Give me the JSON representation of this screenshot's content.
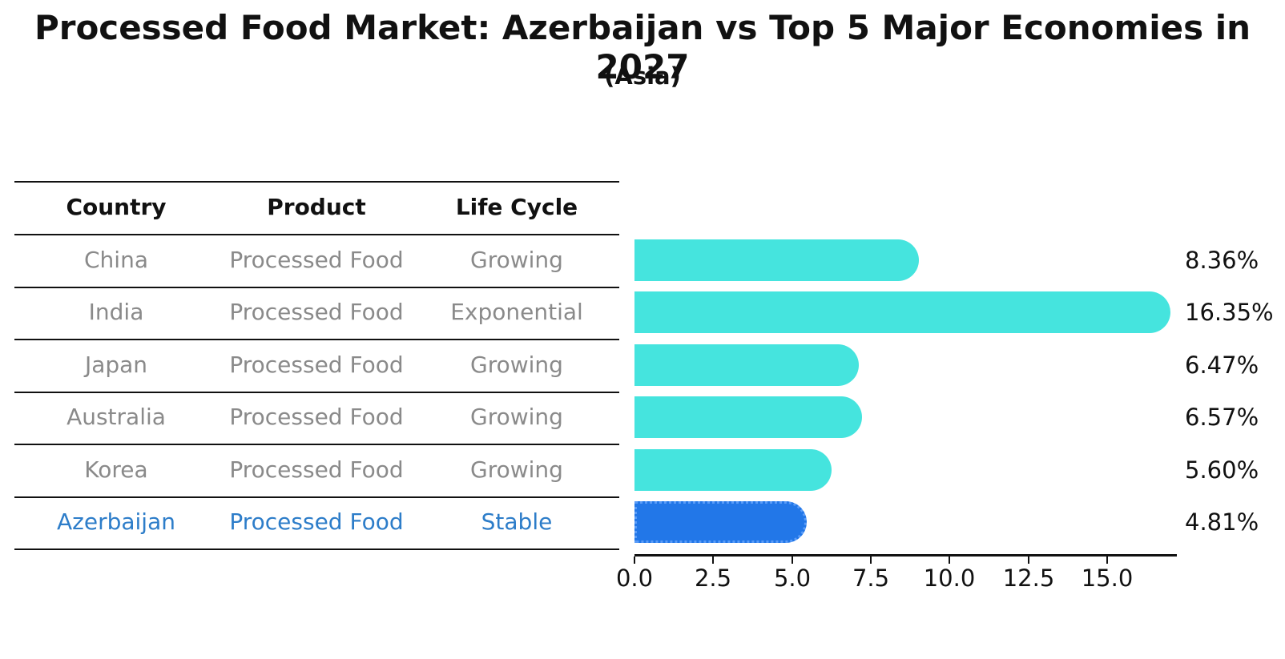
{
  "title": "Processed Food Market: Azerbaijan vs Top 5 Major Economies in 2027",
  "subtitle": "(Asia)",
  "colors": {
    "bar_default": "#45e4de",
    "bar_highlight": "#2277e8",
    "bar_highlight_border": "#5a9cf8",
    "row_text": "#8a8a8a",
    "highlight_text": "#2d7dc9",
    "line": "#111111"
  },
  "table": {
    "headers": [
      "Country",
      "Product",
      "Life Cycle"
    ],
    "rows": [
      {
        "country": "China",
        "product": "Processed Food",
        "life_cycle": "Growing",
        "highlight": false
      },
      {
        "country": "India",
        "product": "Processed Food",
        "life_cycle": "Exponential",
        "highlight": false
      },
      {
        "country": "Japan",
        "product": "Processed Food",
        "life_cycle": "Growing",
        "highlight": false
      },
      {
        "country": "Australia",
        "product": "Processed Food",
        "life_cycle": "Growing",
        "highlight": false
      },
      {
        "country": "Korea",
        "product": "Processed Food",
        "life_cycle": "Growing",
        "highlight": false
      },
      {
        "country": "Azerbaijan",
        "product": "Processed Food",
        "life_cycle": "Stable",
        "highlight": true
      }
    ]
  },
  "chart_data": {
    "type": "bar",
    "orientation": "horizontal",
    "title": "Processed Food Market: Azerbaijan vs Top 5 Major Economies in 2027",
    "subtitle": "(Asia)",
    "categories": [
      "China",
      "India",
      "Japan",
      "Australia",
      "Korea",
      "Azerbaijan"
    ],
    "values": [
      8.36,
      16.35,
      6.47,
      6.57,
      5.6,
      4.81
    ],
    "value_labels": [
      "8.36%",
      "16.35%",
      "6.47%",
      "6.57%",
      "5.60%",
      "4.81%"
    ],
    "highlight_index": 5,
    "x_tick_labels": [
      "0.0",
      "2.5",
      "5.0",
      "7.5",
      "10.0",
      "12.5",
      "15.0"
    ],
    "x_tick_values": [
      0,
      2.5,
      5,
      7.5,
      10,
      12.5,
      15
    ],
    "xlim": [
      0,
      17.2
    ],
    "xlabel": "",
    "ylabel": "",
    "grid": false,
    "legend": false,
    "bar_style": "rounded-right-cap, highlight bar has dotted border"
  }
}
